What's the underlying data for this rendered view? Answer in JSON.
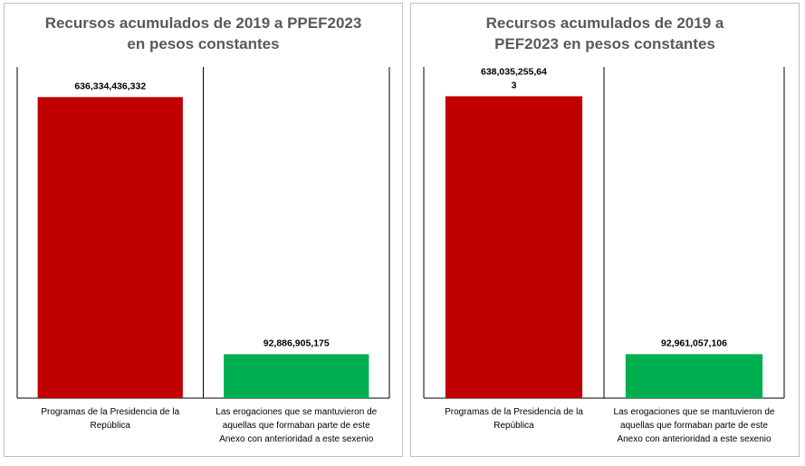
{
  "chart_data": [
    {
      "type": "bar",
      "title": "Recursos acumulados de 2019 a PPEF2023 en pesos constantes",
      "categories": [
        "Programas de la Presidencia de la República",
        "Las erogaciones que se mantuvieron de aquellas que formaban parte de este Anexo con anterioridad a este sexenio"
      ],
      "category_lines": [
        [
          "Programas de la Presidencia de la",
          "República"
        ],
        [
          "Las erogaciones que se mantuvieron de",
          "aquellas que formaban parte de este",
          "Anexo con anterioridad a este sexenio"
        ]
      ],
      "values": [
        636334436332,
        92886905175
      ],
      "value_labels": [
        [
          "636,334,436,332"
        ],
        [
          "92,886,905,175"
        ]
      ],
      "colors": [
        "#c00000",
        "#00b050"
      ],
      "ylim": [
        0,
        700000000000
      ],
      "grid": false,
      "xlabel": "",
      "ylabel": ""
    },
    {
      "type": "bar",
      "title": "Recursos acumulados de 2019 a PEF2023 en pesos constantes",
      "categories": [
        "Programas de la Presidencia de la República",
        "Las erogaciones que se mantuvieron de aquellas que formaban parte de este Anexo con anterioridad a este sexenio"
      ],
      "category_lines": [
        [
          "Programas de la Presidencia de la",
          "República"
        ],
        [
          "Las erogaciones que se mantuvieron de",
          "aquellas que formaban parte de este",
          "Anexo con anterioridad a este sexenio"
        ]
      ],
      "values": [
        638035255643,
        92961057106
      ],
      "value_labels": [
        [
          "638,035,255,64",
          "3"
        ],
        [
          "92,961,057,106"
        ]
      ],
      "colors": [
        "#c00000",
        "#00b050"
      ],
      "ylim": [
        0,
        700000000000
      ],
      "grid": false,
      "xlabel": "",
      "ylabel": ""
    }
  ]
}
